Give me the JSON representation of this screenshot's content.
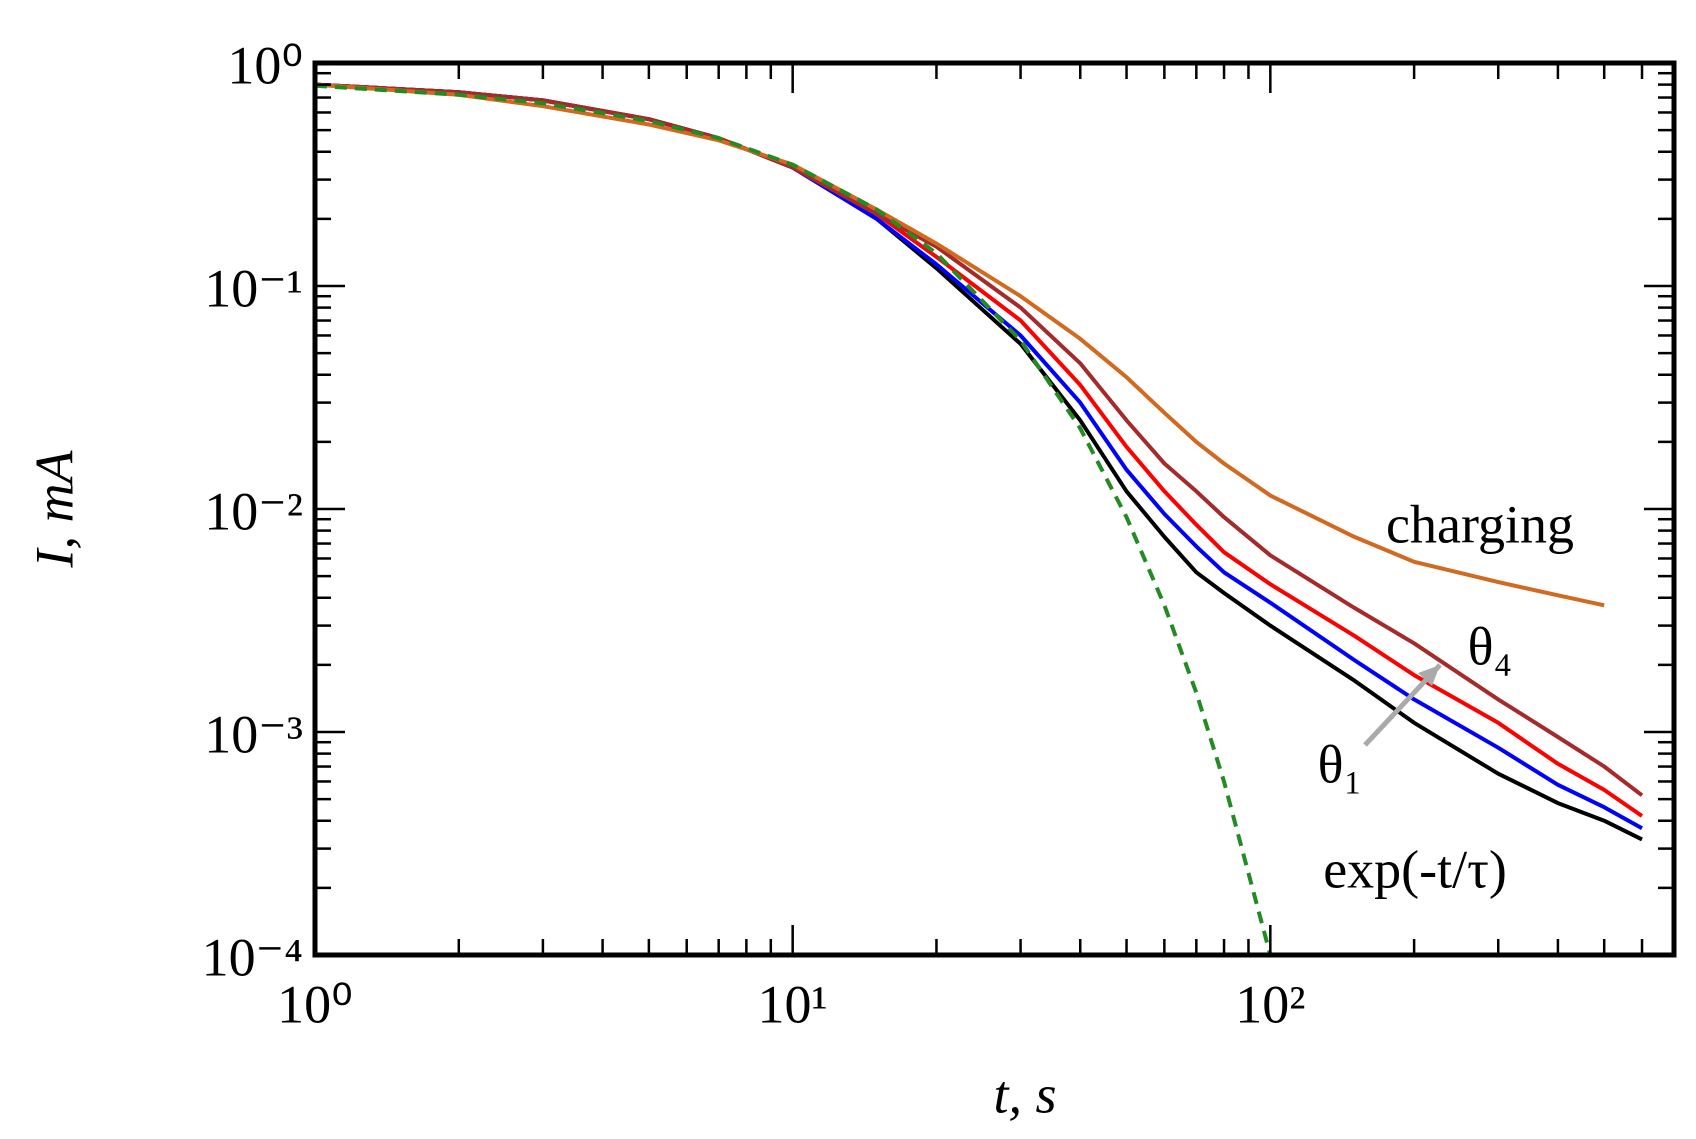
{
  "chart_data": {
    "type": "line",
    "log_x": true,
    "log_y": true,
    "x_label": "t, s",
    "y_label": "I, mA",
    "xlim": [
      1,
      700
    ],
    "ylim": [
      0.0001,
      1
    ],
    "xticks": [
      {
        "value": 1,
        "label": "10⁰"
      },
      {
        "value": 10,
        "label": "10¹"
      },
      {
        "value": 100,
        "label": "10²"
      }
    ],
    "yticks": [
      {
        "value": 0.0001,
        "label": "10⁻⁴"
      },
      {
        "value": 0.001,
        "label": "10⁻³"
      },
      {
        "value": 0.01,
        "label": "10⁻²"
      },
      {
        "value": 0.1,
        "label": "10⁻¹"
      },
      {
        "value": 1,
        "label": "10⁰"
      }
    ],
    "x": [
      1,
      2,
      3,
      5,
      7,
      10,
      15,
      20,
      30,
      40,
      50,
      60,
      70,
      80,
      100,
      150,
      200,
      300,
      400,
      500,
      600
    ],
    "series": [
      {
        "name": "θ₁",
        "color": "#000000",
        "values": [
          0.8,
          0.74,
          0.68,
          0.56,
          0.46,
          0.34,
          0.2,
          0.12,
          0.055,
          0.025,
          0.012,
          0.0075,
          0.0052,
          0.0042,
          0.003,
          0.0017,
          0.0011,
          0.00065,
          0.00048,
          0.0004,
          0.00033
        ]
      },
      {
        "color": "#0000ff",
        "values": [
          0.8,
          0.74,
          0.68,
          0.56,
          0.46,
          0.34,
          0.2,
          0.125,
          0.06,
          0.03,
          0.015,
          0.0095,
          0.0068,
          0.0052,
          0.0038,
          0.0021,
          0.0014,
          0.00085,
          0.00058,
          0.00046,
          0.00037
        ]
      },
      {
        "color": "#ff0000",
        "values": [
          0.8,
          0.74,
          0.68,
          0.56,
          0.46,
          0.34,
          0.21,
          0.135,
          0.07,
          0.036,
          0.019,
          0.012,
          0.0085,
          0.0064,
          0.0046,
          0.0027,
          0.0018,
          0.0011,
          0.00072,
          0.00055,
          0.00042
        ]
      },
      {
        "name": "θ₄",
        "color": "#a52a2a",
        "values": [
          0.8,
          0.74,
          0.68,
          0.56,
          0.46,
          0.34,
          0.21,
          0.15,
          0.08,
          0.045,
          0.025,
          0.016,
          0.012,
          0.0092,
          0.0062,
          0.0036,
          0.0025,
          0.0014,
          0.00095,
          0.0007,
          0.00052
        ]
      },
      {
        "name": "charging",
        "color": "#d2691e",
        "values": [
          0.8,
          0.72,
          0.64,
          0.53,
          0.45,
          0.35,
          0.22,
          0.155,
          0.09,
          0.058,
          0.039,
          0.027,
          0.02,
          0.016,
          0.0115,
          0.0075,
          0.0058,
          0.0047,
          0.0041,
          0.0037,
          null
        ]
      },
      {
        "name": "exp(-t/τ)",
        "color": "#228b22",
        "dashed": true,
        "values": [
          0.79,
          0.72,
          0.66,
          0.55,
          0.46,
          0.35,
          0.22,
          0.14,
          0.057,
          0.023,
          0.0092,
          0.0037,
          0.0015,
          0.0006,
          0.0001,
          null,
          null,
          null,
          null,
          null,
          null
        ]
      }
    ]
  }
}
